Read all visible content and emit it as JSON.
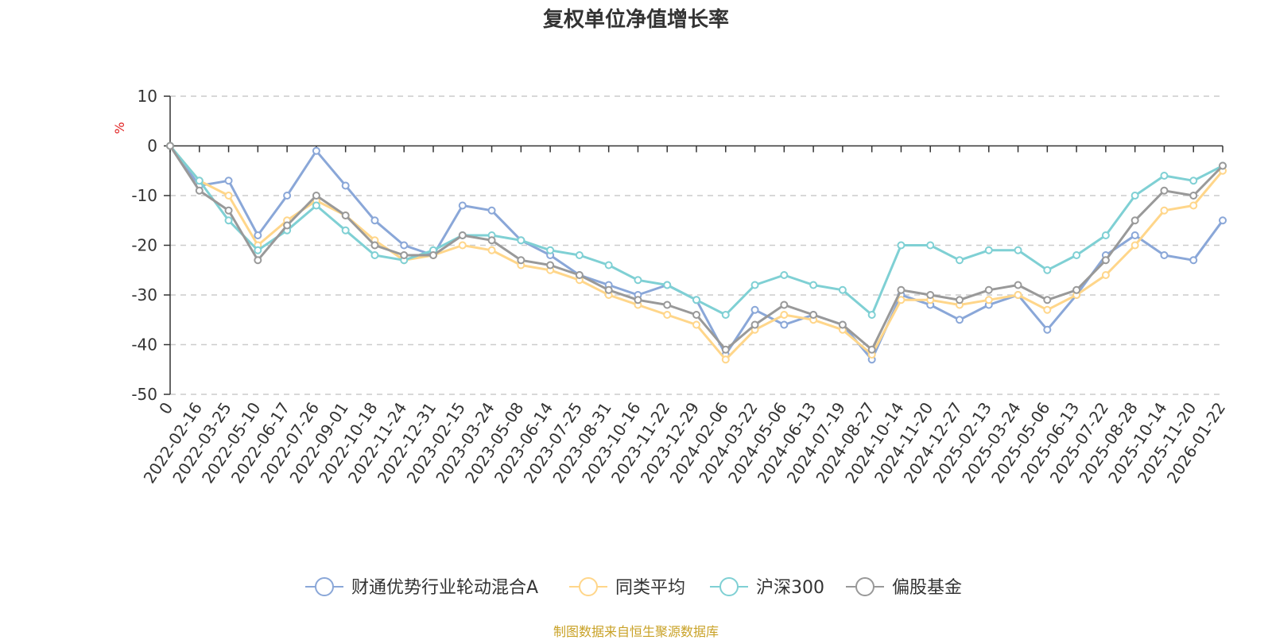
{
  "chart_data": {
    "type": "line",
    "title": "复权单位净值增长率",
    "ylabel": "%",
    "xlabel": "",
    "ylim": [
      -50,
      10
    ],
    "y_ticks": [
      10,
      0,
      -10,
      -20,
      -30,
      -40,
      -50
    ],
    "grid": true,
    "legend_position": "bottom-center",
    "x_tick_labels": [
      "0",
      "2022-02-16",
      "2022-03-25",
      "2022-05-10",
      "2022-06-17",
      "2022-07-26",
      "2022-09-01",
      "2022-10-18",
      "2022-11-24",
      "2022-12-31",
      "2023-02-15",
      "2023-03-24",
      "2023-05-08",
      "2023-06-14",
      "2023-07-25",
      "2023-08-31",
      "2023-10-16",
      "2023-11-22",
      "2023-12-29",
      "2024-02-06",
      "2024-03-22",
      "2024-05-06",
      "2024-06-13",
      "2024-07-19",
      "2024-08-27",
      "2024-10-14",
      "2024-11-20",
      "2024-12-27",
      "2025-02-13",
      "2025-03-24",
      "2025-05-06",
      "2025-06-13",
      "2025-07-22",
      "2025-08-28",
      "2025-10-14",
      "2025-11-20",
      "2026-01-22"
    ],
    "x": [
      0,
      1,
      2,
      3,
      4,
      5,
      6,
      7,
      8,
      9,
      10,
      11,
      12,
      13,
      14,
      15,
      16,
      17,
      18,
      19,
      20,
      21,
      22,
      23,
      24,
      25,
      26,
      27,
      28,
      29,
      30,
      31,
      32,
      33,
      34,
      35,
      36
    ],
    "series": [
      {
        "name": "财通优势行业轮动混合A",
        "color": "#8aa7d8",
        "values": [
          0,
          -8,
          -7,
          -18,
          -10,
          -1,
          -8,
          -15,
          -20,
          -22,
          -12,
          -13,
          -19,
          -22,
          -26,
          -28,
          -30,
          -28,
          -31,
          -42,
          -33,
          -36,
          -34,
          -36,
          -43,
          -30,
          -32,
          -35,
          -32,
          -30,
          -37,
          -30,
          -22,
          -18,
          -22,
          -23,
          -15
        ]
      },
      {
        "name": "同类平均",
        "color": "#ffd68a",
        "values": [
          0,
          -7,
          -10,
          -20,
          -15,
          -11,
          -14,
          -19,
          -23,
          -22,
          -20,
          -21,
          -24,
          -25,
          -27,
          -30,
          -32,
          -34,
          -36,
          -43,
          -37,
          -34,
          -35,
          -37,
          -42,
          -31,
          -31,
          -32,
          -31,
          -30,
          -33,
          -30,
          -26,
          -20,
          -13,
          -12,
          -5
        ]
      },
      {
        "name": "沪深300",
        "color": "#7fd0d4",
        "values": [
          0,
          -7,
          -15,
          -21,
          -17,
          -12,
          -17,
          -22,
          -23,
          -21,
          -18,
          -18,
          -19,
          -21,
          -22,
          -24,
          -27,
          -28,
          -31,
          -34,
          -28,
          -26,
          -28,
          -29,
          -34,
          -20,
          -20,
          -23,
          -21,
          -21,
          -25,
          -22,
          -18,
          -10,
          -6,
          -7,
          -4
        ]
      },
      {
        "name": "偏股基金",
        "color": "#999999",
        "values": [
          0,
          -9,
          -13,
          -23,
          -16,
          -10,
          -14,
          -20,
          -22,
          -22,
          -18,
          -19,
          -23,
          -24,
          -26,
          -29,
          -31,
          -32,
          -34,
          -41,
          -36,
          -32,
          -34,
          -36,
          -41,
          -29,
          -30,
          -31,
          -29,
          -28,
          -31,
          -29,
          -23,
          -15,
          -9,
          -10,
          -4
        ]
      }
    ]
  },
  "footer": {
    "source_text": "制图数据来自恒生聚源数据库"
  }
}
